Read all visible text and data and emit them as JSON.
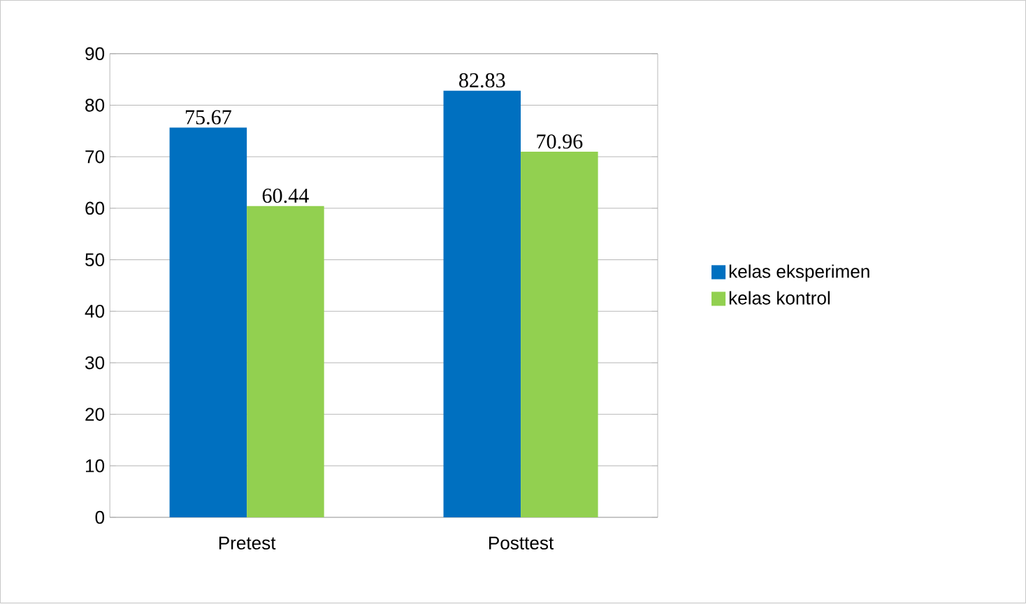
{
  "chart_data": {
    "type": "bar",
    "categories": [
      "Pretest",
      "Posttest"
    ],
    "series": [
      {
        "name": "kelas eksperimen",
        "color": "#0070c0",
        "values": [
          75.67,
          82.83
        ]
      },
      {
        "name": "kelas kontrol",
        "color": "#92d050",
        "values": [
          60.44,
          70.96
        ]
      }
    ],
    "ylim": [
      0,
      90
    ],
    "yticks": [
      0,
      10,
      20,
      30,
      40,
      50,
      60,
      70,
      80,
      90
    ],
    "grid": "y",
    "legend": "right",
    "data_labels": true
  }
}
